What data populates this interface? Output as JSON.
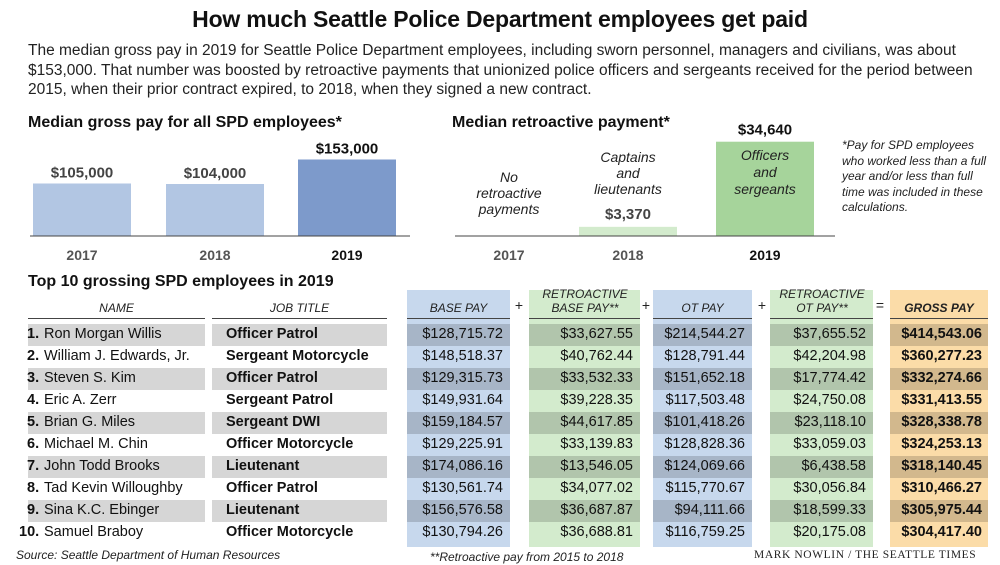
{
  "title": "How much Seattle Police Department employees get paid",
  "intro": "The median gross pay in 2019 for Seattle Police Department employees, including sworn personnel, managers and civilians, was about $153,000. That number was boosted by retroactive payments that unionized police officers and sergeants received for the period between 2015, when their prior contract expired, to 2018, when they signed a new contract.",
  "footnote": "*Pay for SPD employees who worked less than a full year and/or less than full time was included in these calculations.",
  "colors": {
    "light_blue": "#b2c6e3",
    "dark_blue": "#7d9acb",
    "light_green": "#d3ebcd",
    "green": "#a6d49b",
    "orange": "#fbdca8",
    "row_gray": "#d6d6d6"
  },
  "chart_data": [
    {
      "type": "bar",
      "title": "Median gross pay for all SPD employees*",
      "categories": [
        "2017",
        "2018",
        "2019"
      ],
      "values": [
        105000,
        104000,
        153000
      ],
      "labels": [
        "$105,000",
        "$104,000",
        "$153,000"
      ],
      "ylim": [
        0,
        160000
      ]
    },
    {
      "type": "bar",
      "title": "Median retroactive payment*",
      "categories": [
        "2017",
        "2018",
        "2019"
      ],
      "values": [
        0,
        3370,
        34640
      ],
      "labels": [
        "",
        "$3,370",
        "$34,640"
      ],
      "annotations": [
        "No retroactive payments",
        "Captains and lieutenants",
        "Officers and sergeants"
      ],
      "ylim": [
        0,
        36000
      ]
    },
    {
      "type": "table",
      "title": "Top 10 grossing SPD employees in 2019",
      "columns": [
        "NAME",
        "JOB TITLE",
        "BASE PAY",
        "RETROACTIVE BASE PAY**",
        "OT PAY",
        "RETROACTIVE OT PAY**",
        "GROSS PAY"
      ],
      "operators": [
        "+",
        "+",
        "+",
        "="
      ],
      "rows": [
        {
          "rank": "1.",
          "name": "Ron Morgan Willis",
          "job": "Officer Patrol",
          "base": "$128,715.72",
          "retro_base": "$33,627.55",
          "ot": "$214,544.27",
          "retro_ot": "$37,655.52",
          "gross": "$414,543.06"
        },
        {
          "rank": "2.",
          "name": "William J. Edwards, Jr.",
          "job": "Sergeant Motorcycle",
          "base": "$148,518.37",
          "retro_base": "$40,762.44",
          "ot": "$128,791.44",
          "retro_ot": "$42,204.98",
          "gross": "$360,277.23"
        },
        {
          "rank": "3.",
          "name": "Steven S. Kim",
          "job": "Officer Patrol",
          "base": "$129,315.73",
          "retro_base": "$33,532.33",
          "ot": "$151,652.18",
          "retro_ot": "$17,774.42",
          "gross": "$332,274.66"
        },
        {
          "rank": "4.",
          "name": "Eric A. Zerr",
          "job": "Sergeant Patrol",
          "base": "$149,931.64",
          "retro_base": "$39,228.35",
          "ot": "$117,503.48",
          "retro_ot": "$24,750.08",
          "gross": "$331,413.55"
        },
        {
          "rank": "5.",
          "name": "Brian G. Miles",
          "job": "Sergeant DWI",
          "base": "$159,184.57",
          "retro_base": "$44,617.85",
          "ot": "$101,418.26",
          "retro_ot": "$23,118.10",
          "gross": "$328,338.78"
        },
        {
          "rank": "6.",
          "name": "Michael M. Chin",
          "job": "Officer Motorcycle",
          "base": "$129,225.91",
          "retro_base": "$33,139.83",
          "ot": "$128,828.36",
          "retro_ot": "$33,059.03",
          "gross": "$324,253.13"
        },
        {
          "rank": "7.",
          "name": "John Todd Brooks",
          "job": "Lieutenant",
          "base": "$174,086.16",
          "retro_base": "$13,546.05",
          "ot": "$124,069.66",
          "retro_ot": "$6,438.58",
          "gross": "$318,140.45"
        },
        {
          "rank": "8.",
          "name": "Tad Kevin Willoughby",
          "job": "Officer Patrol",
          "base": "$130,561.74",
          "retro_base": "$34,077.02",
          "ot": "$115,770.67",
          "retro_ot": "$30,056.84",
          "gross": "$310,466.27"
        },
        {
          "rank": "9.",
          "name": "Sina K.C. Ebinger",
          "job": "Lieutenant",
          "base": "$156,576.58",
          "retro_base": "$36,687.87",
          "ot": "$94,111.66",
          "retro_ot": "$18,599.33",
          "gross": "$305,975.44"
        },
        {
          "rank": "10.",
          "name": "Samuel Braboy",
          "job": "Officer Motorcycle",
          "base": "$130,794.26",
          "retro_base": "$36,688.81",
          "ot": "$116,759.25",
          "retro_ot": "$20,175.08",
          "gross": "$304,417.40"
        }
      ]
    }
  ],
  "source": "Source: Seattle Department of Human Resources",
  "retro_note": "**Retroactive pay from 2015 to 2018",
  "credit": "MARK NOWLIN / THE SEATTLE TIMES"
}
